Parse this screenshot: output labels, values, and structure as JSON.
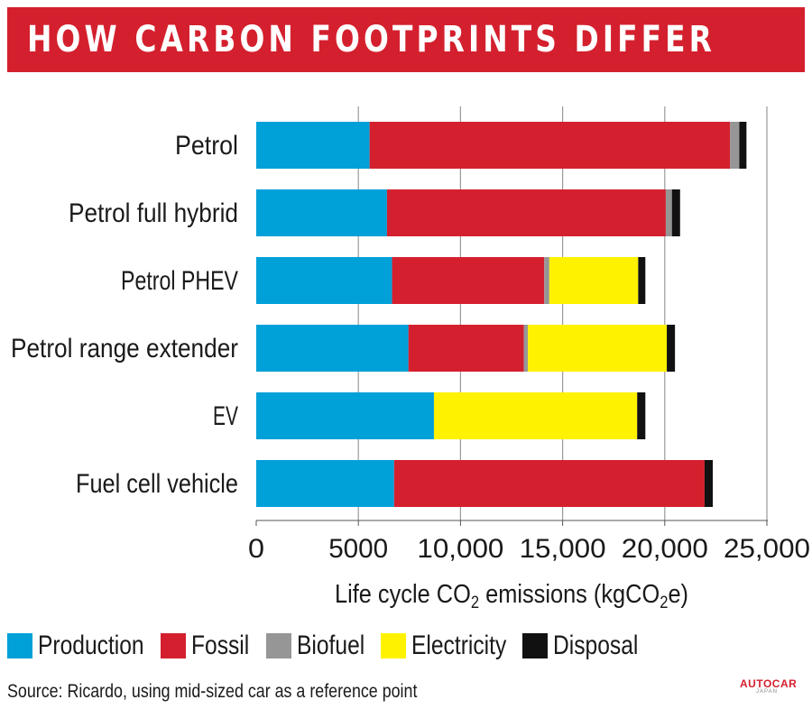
{
  "header": {
    "title": "HOW CARBON FOOTPRINTS DIFFER"
  },
  "colors": {
    "production": "#00a0d8",
    "fossil": "#d4202e",
    "biofuel": "#969696",
    "electricity": "#fff200",
    "disposal": "#111111",
    "title_bar": "#d4202e"
  },
  "legend": {
    "items": [
      {
        "label": "Production",
        "color": "#00a0d8"
      },
      {
        "label": "Fossil",
        "color": "#d4202e"
      },
      {
        "label": "Biofuel",
        "color": "#969696"
      },
      {
        "label": "Electricity",
        "color": "#fff200"
      },
      {
        "label": "Disposal",
        "color": "#111111"
      }
    ]
  },
  "footer": {
    "source": "Source: Ricardo, using mid-sized car as a reference point",
    "watermark_main": "AUTOCAR",
    "watermark_sub": "JAPAN"
  },
  "chart_data": {
    "type": "bar",
    "orientation": "horizontal",
    "stacked": true,
    "categories": [
      "Petrol",
      "Petrol full hybrid",
      "Petrol PHEV",
      "Petrol range extender",
      "EV",
      "Fuel cell vehicle"
    ],
    "series": [
      {
        "name": "Production",
        "color": "#00a0d8",
        "values": [
          5550,
          6400,
          6650,
          7450,
          8700,
          6750
        ]
      },
      {
        "name": "Fossil",
        "color": "#d4202e",
        "values": [
          17650,
          13650,
          7450,
          5650,
          0,
          15200
        ]
      },
      {
        "name": "Biofuel",
        "color": "#969696",
        "values": [
          450,
          300,
          250,
          200,
          0,
          0
        ]
      },
      {
        "name": "Electricity",
        "color": "#fff200",
        "values": [
          0,
          0,
          4350,
          6800,
          9950,
          0
        ]
      },
      {
        "name": "Disposal",
        "color": "#111111",
        "values": [
          350,
          400,
          350,
          400,
          400,
          400
        ]
      }
    ],
    "xlim": [
      0,
      25000
    ],
    "xticks": [
      0,
      5000,
      10000,
      15000,
      20000,
      25000
    ],
    "xtick_labels": [
      "0",
      "5000",
      "10,000",
      "15,000",
      "20,000",
      "25,000"
    ],
    "xlabel_prefix": "Life cycle CO",
    "xlabel_sub": "2",
    "xlabel_mid": " emissions (kgCO",
    "xlabel_sub2": "2",
    "xlabel_suffix": "e)",
    "grid": true,
    "legend_position": "bottom"
  }
}
